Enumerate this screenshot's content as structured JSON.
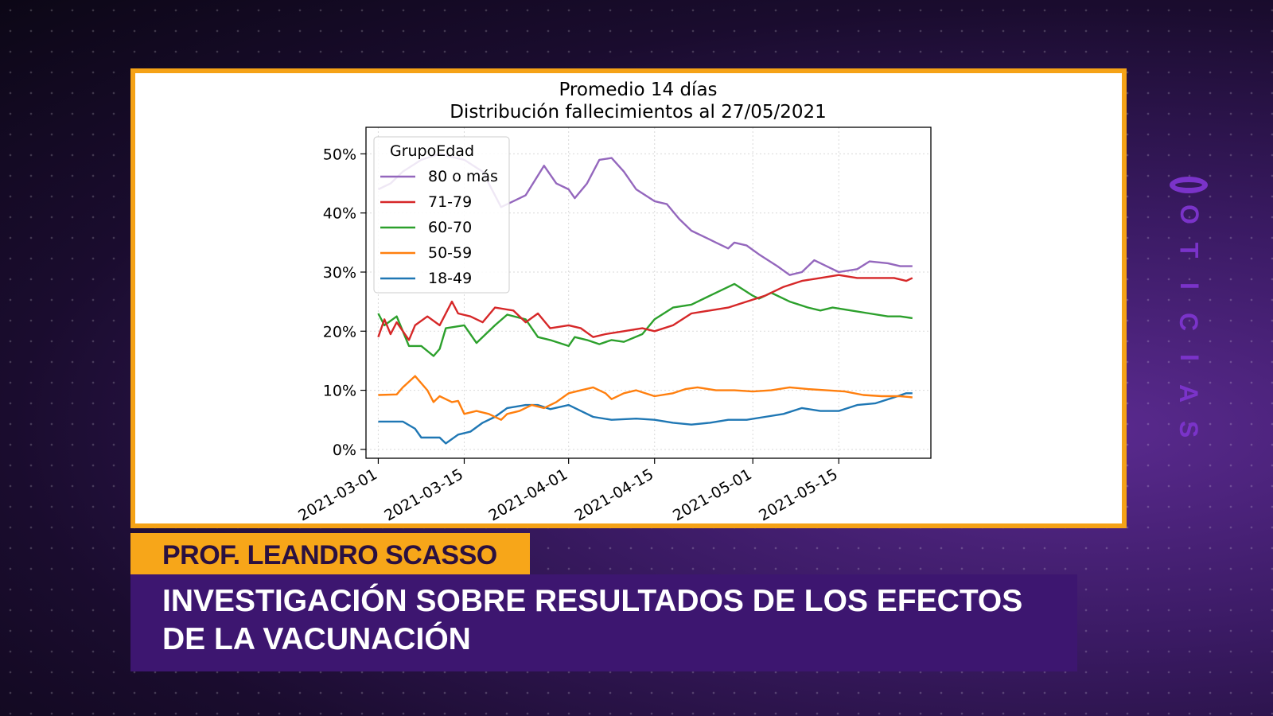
{
  "brand": {
    "letters": [
      "N",
      "O",
      "T",
      "I",
      "C",
      "I",
      "A",
      "S"
    ],
    "color": "#7a33c9"
  },
  "lower_third": {
    "name": "PROF. LEANDRO SCASSO",
    "headline_line1": "INVESTIGACIÓN SOBRE RESULTADOS DE LOS EFECTOS",
    "headline_line2": "DE LA VACUNACIÓN"
  },
  "chart_data": {
    "type": "line",
    "title": "Promedio 14 días",
    "subtitle": "Distribución fallecimientos al 27/05/2021",
    "xlabel": "",
    "ylabel": "",
    "x_start": "2021-03-01",
    "x_end": "2021-05-27",
    "xlim": [
      "2021-02-27",
      "2021-05-30"
    ],
    "ylim": [
      -1.5,
      54.5
    ],
    "grid": true,
    "y_ticks": [
      0,
      10,
      20,
      30,
      40,
      50
    ],
    "y_tick_labels": [
      "0%",
      "10%",
      "20%",
      "30%",
      "40%",
      "50%"
    ],
    "x_ticks": [
      "2021-03-01",
      "2021-03-15",
      "2021-04-01",
      "2021-04-15",
      "2021-05-01",
      "2021-05-15"
    ],
    "x_tick_labels": [
      "2021-03-01",
      "2021-03-15",
      "2021-04-01",
      "2021-04-15",
      "2021-05-01",
      "2021-05-15"
    ],
    "legend": {
      "title": "GrupoEdad",
      "placement": "top-left"
    },
    "series": [
      {
        "name": "80 o más",
        "color": "#9467bd",
        "points": [
          [
            "2021-03-01",
            44
          ],
          [
            "2021-03-03",
            45
          ],
          [
            "2021-03-05",
            47
          ],
          [
            "2021-03-08",
            49
          ],
          [
            "2021-03-11",
            50
          ],
          [
            "2021-03-15",
            49
          ],
          [
            "2021-03-18",
            47
          ],
          [
            "2021-03-21",
            41
          ],
          [
            "2021-03-23",
            42
          ],
          [
            "2021-03-25",
            43
          ],
          [
            "2021-03-28",
            48
          ],
          [
            "2021-03-30",
            45
          ],
          [
            "2021-04-01",
            44
          ],
          [
            "2021-04-02",
            42.5
          ],
          [
            "2021-04-04",
            45
          ],
          [
            "2021-04-06",
            49
          ],
          [
            "2021-04-08",
            49.3
          ],
          [
            "2021-04-10",
            47
          ],
          [
            "2021-04-12",
            44
          ],
          [
            "2021-04-15",
            42
          ],
          [
            "2021-04-17",
            41.5
          ],
          [
            "2021-04-19",
            39
          ],
          [
            "2021-04-21",
            37
          ],
          [
            "2021-04-23",
            36
          ],
          [
            "2021-04-25",
            35
          ],
          [
            "2021-04-27",
            34
          ],
          [
            "2021-04-28",
            35
          ],
          [
            "2021-04-30",
            34.5
          ],
          [
            "2021-05-02",
            33
          ],
          [
            "2021-05-05",
            31
          ],
          [
            "2021-05-07",
            29.5
          ],
          [
            "2021-05-09",
            30
          ],
          [
            "2021-05-11",
            32
          ],
          [
            "2021-05-13",
            31
          ],
          [
            "2021-05-15",
            30
          ],
          [
            "2021-05-18",
            30.5
          ],
          [
            "2021-05-20",
            31.8
          ],
          [
            "2021-05-23",
            31.5
          ],
          [
            "2021-05-25",
            31
          ],
          [
            "2021-05-27",
            31
          ]
        ]
      },
      {
        "name": "71-79",
        "color": "#d62728",
        "points": [
          [
            "2021-03-01",
            19
          ],
          [
            "2021-03-02",
            22
          ],
          [
            "2021-03-03",
            19.5
          ],
          [
            "2021-03-04",
            21.5
          ],
          [
            "2021-03-06",
            18.5
          ],
          [
            "2021-03-07",
            21
          ],
          [
            "2021-03-09",
            22.5
          ],
          [
            "2021-03-11",
            21
          ],
          [
            "2021-03-13",
            25
          ],
          [
            "2021-03-14",
            23
          ],
          [
            "2021-03-16",
            22.5
          ],
          [
            "2021-03-18",
            21.5
          ],
          [
            "2021-03-20",
            24
          ],
          [
            "2021-03-23",
            23.5
          ],
          [
            "2021-03-25",
            21.5
          ],
          [
            "2021-03-27",
            23
          ],
          [
            "2021-03-29",
            20.5
          ],
          [
            "2021-04-01",
            21
          ],
          [
            "2021-04-03",
            20.5
          ],
          [
            "2021-04-05",
            19
          ],
          [
            "2021-04-07",
            19.5
          ],
          [
            "2021-04-10",
            20
          ],
          [
            "2021-04-13",
            20.5
          ],
          [
            "2021-04-15",
            20
          ],
          [
            "2021-04-18",
            21
          ],
          [
            "2021-04-21",
            23
          ],
          [
            "2021-04-24",
            23.5
          ],
          [
            "2021-04-27",
            24
          ],
          [
            "2021-04-30",
            25
          ],
          [
            "2021-05-03",
            26
          ],
          [
            "2021-05-06",
            27.5
          ],
          [
            "2021-05-09",
            28.5
          ],
          [
            "2021-05-12",
            29
          ],
          [
            "2021-05-15",
            29.5
          ],
          [
            "2021-05-18",
            29
          ],
          [
            "2021-05-21",
            29
          ],
          [
            "2021-05-24",
            29
          ],
          [
            "2021-05-26",
            28.5
          ],
          [
            "2021-05-27",
            29
          ]
        ]
      },
      {
        "name": "60-70",
        "color": "#2ca02c",
        "points": [
          [
            "2021-03-01",
            23
          ],
          [
            "2021-03-02",
            21
          ],
          [
            "2021-03-04",
            22.5
          ],
          [
            "2021-03-06",
            17.5
          ],
          [
            "2021-03-08",
            17.5
          ],
          [
            "2021-03-10",
            15.8
          ],
          [
            "2021-03-11",
            17
          ],
          [
            "2021-03-12",
            20.5
          ],
          [
            "2021-03-15",
            21
          ],
          [
            "2021-03-17",
            18
          ],
          [
            "2021-03-18",
            19
          ],
          [
            "2021-03-20",
            21
          ],
          [
            "2021-03-22",
            22.8
          ],
          [
            "2021-03-25",
            22
          ],
          [
            "2021-03-27",
            19
          ],
          [
            "2021-03-29",
            18.5
          ],
          [
            "2021-04-01",
            17.5
          ],
          [
            "2021-04-02",
            19
          ],
          [
            "2021-04-04",
            18.5
          ],
          [
            "2021-04-06",
            17.8
          ],
          [
            "2021-04-08",
            18.5
          ],
          [
            "2021-04-10",
            18.2
          ],
          [
            "2021-04-13",
            19.5
          ],
          [
            "2021-04-15",
            22
          ],
          [
            "2021-04-18",
            24
          ],
          [
            "2021-04-21",
            24.5
          ],
          [
            "2021-04-24",
            26
          ],
          [
            "2021-04-26",
            27
          ],
          [
            "2021-04-28",
            28
          ],
          [
            "2021-05-01",
            26
          ],
          [
            "2021-05-02",
            25.5
          ],
          [
            "2021-05-04",
            26.5
          ],
          [
            "2021-05-07",
            25
          ],
          [
            "2021-05-10",
            24
          ],
          [
            "2021-05-12",
            23.5
          ],
          [
            "2021-05-14",
            24
          ],
          [
            "2021-05-17",
            23.5
          ],
          [
            "2021-05-20",
            23
          ],
          [
            "2021-05-23",
            22.5
          ],
          [
            "2021-05-25",
            22.5
          ],
          [
            "2021-05-27",
            22.2
          ]
        ]
      },
      {
        "name": "50-59",
        "color": "#ff7f0e",
        "points": [
          [
            "2021-03-01",
            9.2
          ],
          [
            "2021-03-04",
            9.3
          ],
          [
            "2021-03-05",
            10.5
          ],
          [
            "2021-03-07",
            12.4
          ],
          [
            "2021-03-09",
            10
          ],
          [
            "2021-03-10",
            8
          ],
          [
            "2021-03-11",
            9
          ],
          [
            "2021-03-13",
            8
          ],
          [
            "2021-03-14",
            8.2
          ],
          [
            "2021-03-15",
            6
          ],
          [
            "2021-03-17",
            6.5
          ],
          [
            "2021-03-19",
            6
          ],
          [
            "2021-03-21",
            5
          ],
          [
            "2021-03-22",
            6
          ],
          [
            "2021-03-24",
            6.5
          ],
          [
            "2021-03-26",
            7.5
          ],
          [
            "2021-03-28",
            7
          ],
          [
            "2021-03-30",
            8
          ],
          [
            "2021-04-01",
            9.5
          ],
          [
            "2021-04-03",
            10
          ],
          [
            "2021-04-05",
            10.5
          ],
          [
            "2021-04-07",
            9.5
          ],
          [
            "2021-04-08",
            8.5
          ],
          [
            "2021-04-10",
            9.5
          ],
          [
            "2021-04-12",
            10
          ],
          [
            "2021-04-15",
            9
          ],
          [
            "2021-04-18",
            9.5
          ],
          [
            "2021-04-20",
            10.2
          ],
          [
            "2021-04-22",
            10.5
          ],
          [
            "2021-04-25",
            10
          ],
          [
            "2021-04-28",
            10
          ],
          [
            "2021-05-01",
            9.8
          ],
          [
            "2021-05-04",
            10
          ],
          [
            "2021-05-07",
            10.5
          ],
          [
            "2021-05-10",
            10.2
          ],
          [
            "2021-05-13",
            10
          ],
          [
            "2021-05-16",
            9.8
          ],
          [
            "2021-05-19",
            9.2
          ],
          [
            "2021-05-22",
            9
          ],
          [
            "2021-05-25",
            9
          ],
          [
            "2021-05-27",
            8.8
          ]
        ]
      },
      {
        "name": "18-49",
        "color": "#1f77b4",
        "points": [
          [
            "2021-03-01",
            4.7
          ],
          [
            "2021-03-05",
            4.7
          ],
          [
            "2021-03-07",
            3.5
          ],
          [
            "2021-03-08",
            2
          ],
          [
            "2021-03-11",
            2
          ],
          [
            "2021-03-12",
            1
          ],
          [
            "2021-03-14",
            2.5
          ],
          [
            "2021-03-16",
            3
          ],
          [
            "2021-03-18",
            4.5
          ],
          [
            "2021-03-20",
            5.5
          ],
          [
            "2021-03-22",
            7
          ],
          [
            "2021-03-25",
            7.5
          ],
          [
            "2021-03-27",
            7.5
          ],
          [
            "2021-03-29",
            6.8
          ],
          [
            "2021-04-01",
            7.5
          ],
          [
            "2021-04-03",
            6.5
          ],
          [
            "2021-04-05",
            5.5
          ],
          [
            "2021-04-08",
            5
          ],
          [
            "2021-04-12",
            5.2
          ],
          [
            "2021-04-15",
            5
          ],
          [
            "2021-04-18",
            4.5
          ],
          [
            "2021-04-21",
            4.2
          ],
          [
            "2021-04-24",
            4.5
          ],
          [
            "2021-04-27",
            5
          ],
          [
            "2021-04-30",
            5
          ],
          [
            "2021-05-03",
            5.5
          ],
          [
            "2021-05-06",
            6
          ],
          [
            "2021-05-09",
            7
          ],
          [
            "2021-05-12",
            6.5
          ],
          [
            "2021-05-15",
            6.5
          ],
          [
            "2021-05-18",
            7.5
          ],
          [
            "2021-05-21",
            7.8
          ],
          [
            "2021-05-24",
            8.8
          ],
          [
            "2021-05-26",
            9.5
          ],
          [
            "2021-05-27",
            9.5
          ]
        ]
      }
    ]
  }
}
